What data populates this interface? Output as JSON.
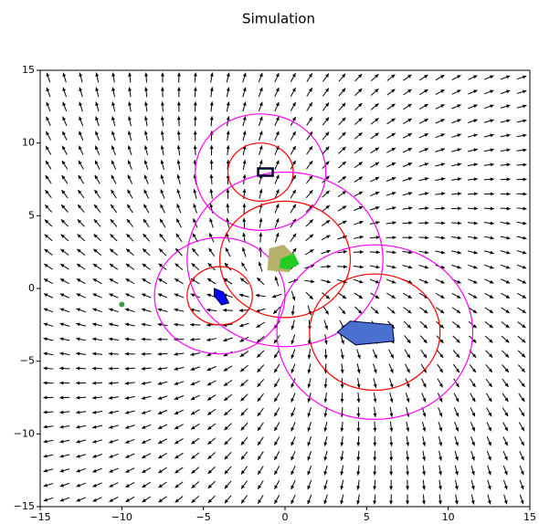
{
  "chart_data": {
    "type": "vector-field",
    "title": "Simulation",
    "xlim": [
      -15,
      15
    ],
    "ylim": [
      -15,
      15
    ],
    "xticks": [
      {
        "value": -15,
        "label": "−15"
      },
      {
        "value": -10,
        "label": "−10"
      },
      {
        "value": -5,
        "label": "−5"
      },
      0,
      5,
      10,
      15
    ],
    "yticks": [
      {
        "value": -15,
        "label": "−15"
      },
      {
        "value": -10,
        "label": "−10"
      },
      {
        "value": -5,
        "label": "−5"
      },
      0,
      5,
      10,
      15
    ],
    "circles": [
      {
        "x": -1.5,
        "y": 8,
        "r": 4,
        "color": "#ff00ff"
      },
      {
        "x": -1.5,
        "y": 8,
        "r": 2,
        "color": "#ff0000"
      },
      {
        "x": 0,
        "y": 2,
        "r": 6,
        "color": "#ff00ff"
      },
      {
        "x": 0,
        "y": 2,
        "r": 4,
        "color": "#ff0000"
      },
      {
        "x": -4,
        "y": -0.5,
        "r": 4,
        "color": "#ff00ff"
      },
      {
        "x": -4,
        "y": -0.5,
        "r": 2,
        "color": "#ff0000"
      },
      {
        "x": 5.5,
        "y": -3,
        "r": 6,
        "color": "#ff00ff"
      },
      {
        "x": 5.5,
        "y": -3,
        "r": 4,
        "color": "#ff0000"
      }
    ],
    "objects": [
      {
        "x": -1.2,
        "y": 8,
        "color": "#0000cc"
      },
      {
        "x": -0.3,
        "y": 2,
        "color": "#b5b06a"
      },
      {
        "x": 0.2,
        "y": 1.8,
        "color": "#22cc22"
      },
      {
        "x": -4,
        "y": -0.5,
        "color": "#0000ff"
      },
      {
        "x": 5,
        "y": -3,
        "color": "#4a70d0"
      }
    ],
    "points": [
      {
        "x": -10,
        "y": -1.1,
        "color": "#3a9a3a"
      }
    ]
  }
}
